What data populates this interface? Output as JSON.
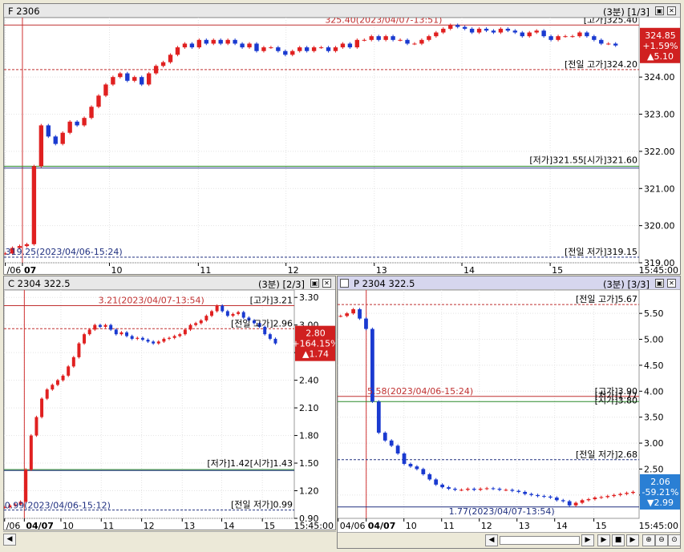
{
  "panels": [
    {
      "title": "F 2306",
      "period": "(3분)",
      "page": "[1/3]"
    },
    {
      "title": "C 2304 322.5",
      "period": "(3분)",
      "page": "[2/3]"
    },
    {
      "title": "P 2304 322.5",
      "period": "(3분)",
      "page": "[3/3]"
    }
  ],
  "chart_data": [
    {
      "type": "candlestick",
      "symbol": "F 2306",
      "ylim": [
        319.0,
        325.6
      ],
      "yticks": [
        "319.00",
        "320.00",
        "321.00",
        "322.00",
        "323.00",
        "324.00"
      ],
      "xticks": [
        "/06",
        "07",
        "10",
        "11",
        "12",
        "13",
        "14",
        "15",
        "15:45:00"
      ],
      "last": {
        "price": "324.85",
        "change_pct": "+1.59%",
        "change": "▲5.10",
        "color": "#d02020"
      },
      "annotations": {
        "high_point": "325.40(2023/04/07-13:51)",
        "high": "[고가]325.40",
        "prev_high": "[전일 고가]324.20",
        "low_open": "[저가]321.55[시가]321.60",
        "prev_low": "[전일 저가]319.15",
        "prev_low_point": "319.25(2023/04/06-15:24)"
      },
      "levels": {
        "high": 325.4,
        "prev_high": 324.2,
        "open": 321.6,
        "low": 321.55,
        "prev_low": 319.15
      },
      "series": [
        {
          "name": "price",
          "values": [
            319.25,
            319.4,
            319.45,
            319.5,
            321.6,
            322.7,
            322.4,
            322.2,
            322.5,
            322.8,
            322.7,
            322.9,
            323.2,
            323.5,
            323.8,
            324.0,
            324.1,
            323.9,
            324.0,
            323.8,
            324.1,
            324.3,
            324.4,
            324.6,
            324.8,
            324.9,
            324.8,
            325.0,
            324.9,
            325.0,
            324.9,
            325.0,
            324.9,
            324.8,
            324.9,
            324.7,
            324.8,
            324.8,
            324.7,
            324.6,
            324.7,
            324.8,
            324.7,
            324.8,
            324.8,
            324.7,
            324.8,
            324.9,
            324.8,
            325.0,
            325.0,
            325.1,
            325.0,
            325.1,
            325.0,
            325.0,
            324.9,
            324.9,
            325.0,
            325.1,
            325.2,
            325.3,
            325.4,
            325.35,
            325.3,
            325.2,
            325.3,
            325.25,
            325.2,
            325.3,
            325.25,
            325.2,
            325.1,
            325.2,
            325.25,
            325.1,
            325.0,
            325.1,
            325.1,
            325.1,
            325.2,
            325.1,
            325.0,
            324.9,
            324.9,
            324.85
          ]
        }
      ]
    },
    {
      "type": "candlestick",
      "symbol": "C 2304 322.5",
      "ylim": [
        0.9,
        3.38
      ],
      "yticks": [
        "0.90",
        "1.20",
        "1.50",
        "1.80",
        "2.10",
        "2.40",
        "2.70",
        "3.00",
        "3.30"
      ],
      "xticks": [
        "/06",
        "04/07",
        "10",
        "11",
        "12",
        "13",
        "14",
        "15",
        "15:45:00"
      ],
      "last": {
        "price": "2.80",
        "change_pct": "+164.15%",
        "change": "▲1.74",
        "color": "#d02020"
      },
      "annotations": {
        "high_point": "3.21(2023/04/07-13:54)",
        "high": "[고가]3.21",
        "prev_high": "[전일 고가]2.96",
        "low_open": "[저가]1.42[시가]1.43",
        "prev_low": "[전일 저가]0.99",
        "prev_low_point": "0.99(2023/04/06-15:12)"
      },
      "levels": {
        "high": 3.21,
        "prev_high": 2.96,
        "open": 1.43,
        "low": 1.42,
        "prev_low": 0.99
      },
      "series": [
        {
          "name": "price",
          "values": [
            1.02,
            1.04,
            1.05,
            1.08,
            1.43,
            1.8,
            2.0,
            2.2,
            2.3,
            2.35,
            2.4,
            2.45,
            2.55,
            2.65,
            2.8,
            2.9,
            2.95,
            3.0,
            2.98,
            3.0,
            2.95,
            2.9,
            2.92,
            2.88,
            2.85,
            2.86,
            2.84,
            2.82,
            2.8,
            2.82,
            2.85,
            2.86,
            2.88,
            2.9,
            2.95,
            3.0,
            3.02,
            3.05,
            3.1,
            3.15,
            3.21,
            3.15,
            3.1,
            3.12,
            3.14,
            3.08,
            3.05,
            3.02,
            2.98,
            2.9,
            2.85,
            2.8
          ]
        }
      ]
    },
    {
      "type": "candlestick",
      "symbol": "P 2304 322.5",
      "ylim": [
        1.55,
        5.95
      ],
      "yticks": [
        "2.00",
        "2.50",
        "3.00",
        "3.50",
        "4.00",
        "4.50",
        "5.00",
        "5.50"
      ],
      "xticks": [
        "04/06",
        "04/07",
        "10",
        "11",
        "12",
        "13",
        "14",
        "15",
        "15:45:00"
      ],
      "last": {
        "price": "2.06",
        "change_pct": "-59.21%",
        "change": "▼2.99",
        "color": "#2a7fd4"
      },
      "annotations": {
        "high_point": "5.58(2023/04/06-15:24)",
        "high": "[고가]3.90",
        "prev_high": "[전일 고가]5.67",
        "low_open": "[저가]1.77",
        "open_label": "[시가]3.80",
        "prev_low": "[전일 저가]2.68",
        "low_point": "1.77(2023/04/07-13:54)"
      },
      "levels": {
        "high": 3.9,
        "prev_high": 5.67,
        "open": 3.8,
        "low": 1.77,
        "prev_low": 2.68
      },
      "series": [
        {
          "name": "price",
          "values": [
            5.45,
            5.5,
            5.58,
            5.4,
            5.2,
            3.8,
            3.2,
            3.05,
            2.95,
            2.8,
            2.6,
            2.55,
            2.5,
            2.4,
            2.3,
            2.2,
            2.15,
            2.12,
            2.1,
            2.1,
            2.12,
            2.1,
            2.12,
            2.13,
            2.12,
            2.1,
            2.1,
            2.08,
            2.06,
            2.02,
            2.0,
            1.98,
            1.97,
            1.95,
            1.9,
            1.88,
            1.8,
            1.85,
            1.9,
            1.92,
            1.95,
            1.96,
            1.98,
            2.0,
            2.02,
            2.04,
            2.06
          ]
        }
      ]
    }
  ]
}
